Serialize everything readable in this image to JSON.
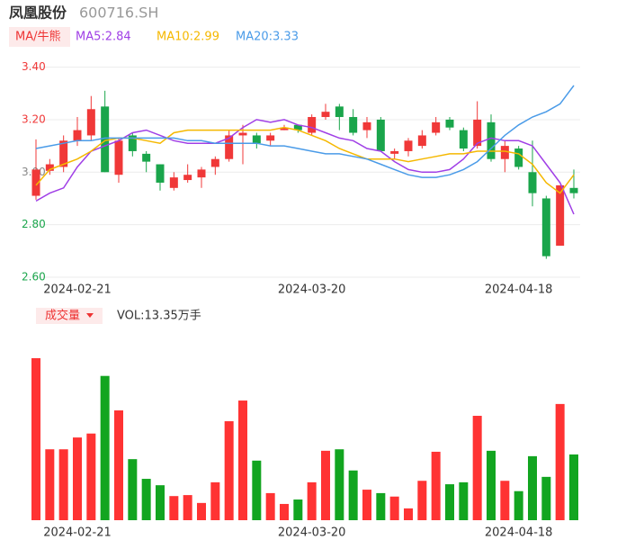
{
  "header": {
    "title": "凤凰股份",
    "code": "600716.SH",
    "ma_button": "MA/牛熊",
    "volume_button": "成交量",
    "volume_label": "VOL:13.35万手"
  },
  "chart_data": [
    {
      "type": "candlestick",
      "categories": [
        null,
        null,
        null,
        "2024-02-21",
        null,
        null,
        null,
        null,
        null,
        null,
        null,
        null,
        null,
        null,
        null,
        null,
        null,
        null,
        null,
        null,
        "2024-03-20",
        null,
        null,
        null,
        null,
        null,
        null,
        null,
        null,
        null,
        null,
        null,
        null,
        null,
        null,
        "2024-04-18",
        null,
        null,
        null,
        null
      ],
      "open": [
        2.91,
        3.005,
        3.02,
        3.12,
        3.14,
        3.25,
        2.99,
        3.14,
        3.07,
        3.03,
        2.94,
        2.97,
        2.98,
        3.02,
        3.05,
        3.14,
        3.14,
        3.12,
        3.16,
        3.18,
        3.15,
        3.21,
        3.25,
        3.21,
        3.16,
        3.2,
        3.07,
        3.08,
        3.1,
        3.15,
        3.2,
        3.16,
        3.1,
        3.19,
        3.05,
        3.09,
        3.0,
        2.9,
        2.72,
        2.94
      ],
      "close": [
        3.01,
        3.03,
        3.12,
        3.16,
        3.24,
        3.0,
        3.12,
        3.08,
        3.04,
        2.96,
        2.98,
        2.99,
        3.01,
        3.05,
        3.14,
        3.15,
        3.11,
        3.14,
        3.17,
        3.16,
        3.21,
        3.23,
        3.21,
        3.15,
        3.19,
        3.08,
        3.08,
        3.12,
        3.14,
        3.19,
        3.17,
        3.09,
        3.2,
        3.05,
        3.1,
        3.02,
        2.92,
        2.68,
        2.95,
        2.92
      ],
      "high": [
        3.125,
        3.05,
        3.14,
        3.21,
        3.29,
        3.31,
        3.13,
        3.15,
        3.08,
        3.03,
        3.0,
        3.03,
        3.02,
        3.06,
        3.16,
        3.18,
        3.15,
        3.15,
        3.18,
        3.18,
        3.22,
        3.26,
        3.26,
        3.24,
        3.21,
        3.21,
        3.09,
        3.13,
        3.16,
        3.21,
        3.21,
        3.17,
        3.27,
        3.22,
        3.12,
        3.1,
        3.12,
        2.91,
        2.95,
        3.01
      ],
      "low": [
        2.895,
        2.99,
        3.0,
        3.1,
        3.12,
        3.0,
        2.96,
        3.06,
        3.0,
        2.93,
        2.93,
        2.96,
        2.94,
        2.99,
        3.04,
        3.03,
        3.09,
        3.1,
        3.16,
        3.15,
        3.14,
        3.2,
        3.16,
        3.14,
        3.13,
        3.08,
        3.05,
        3.06,
        3.09,
        3.14,
        3.16,
        3.08,
        3.09,
        3.04,
        3.0,
        3.01,
        2.87,
        2.67,
        2.72,
        2.9
      ],
      "up_color": "#f03838",
      "down_color": "#1aa54b",
      "series": [
        {
          "name": "MA5:2.84",
          "color": "#a03fe6",
          "values": [
            2.89,
            2.92,
            2.94,
            3.02,
            3.08,
            3.1,
            3.12,
            3.15,
            3.16,
            3.14,
            3.12,
            3.11,
            3.11,
            3.11,
            3.13,
            3.17,
            3.2,
            3.19,
            3.2,
            3.18,
            3.17,
            3.15,
            3.13,
            3.12,
            3.09,
            3.08,
            3.04,
            3.01,
            3.0,
            3.0,
            3.01,
            3.05,
            3.11,
            3.13,
            3.12,
            3.12,
            3.1,
            3.03,
            2.96,
            2.84
          ]
        },
        {
          "name": "MA10:2.99",
          "color": "#f5b800",
          "values": [
            2.95,
            3.01,
            3.03,
            3.05,
            3.08,
            3.12,
            3.13,
            3.13,
            3.12,
            3.11,
            3.15,
            3.16,
            3.16,
            3.16,
            3.16,
            3.16,
            3.16,
            3.16,
            3.17,
            3.16,
            3.14,
            3.12,
            3.09,
            3.07,
            3.05,
            3.05,
            3.05,
            3.04,
            3.05,
            3.06,
            3.07,
            3.07,
            3.08,
            3.08,
            3.08,
            3.07,
            3.03,
            2.96,
            2.92,
            2.99
          ]
        },
        {
          "name": "MA20:3.33",
          "color": "#4a9be8",
          "values": [
            3.09,
            3.1,
            3.11,
            3.12,
            3.12,
            3.13,
            3.13,
            3.13,
            3.13,
            3.13,
            3.13,
            3.12,
            3.12,
            3.11,
            3.11,
            3.11,
            3.11,
            3.1,
            3.1,
            3.09,
            3.08,
            3.07,
            3.07,
            3.06,
            3.05,
            3.03,
            3.01,
            2.99,
            2.98,
            2.98,
            2.99,
            3.01,
            3.04,
            3.09,
            3.14,
            3.18,
            3.21,
            3.23,
            3.26,
            3.33
          ]
        }
      ],
      "ylim": [
        2.6,
        3.45
      ],
      "yticks": [
        {
          "value": 2.6,
          "label": "2.60"
        },
        {
          "value": 2.8,
          "label": "2.80"
        },
        {
          "value": 3.0,
          "label": "3.00"
        },
        {
          "value": 3.2,
          "label": "3.20"
        },
        {
          "value": 3.4,
          "label": "3.40"
        }
      ],
      "ytick_colors": [
        "#1aa54b",
        "#1aa54b",
        "#888888",
        "#f03838",
        "#f03838"
      ],
      "grid": true
    },
    {
      "type": "bar",
      "categories": [
        null,
        null,
        null,
        "2024-02-21",
        null,
        null,
        null,
        null,
        null,
        null,
        null,
        null,
        null,
        null,
        null,
        null,
        null,
        null,
        null,
        null,
        "2024-03-20",
        null,
        null,
        null,
        null,
        null,
        null,
        null,
        null,
        null,
        null,
        null,
        null,
        null,
        null,
        "2024-04-18",
        null,
        null,
        null,
        null
      ],
      "values": [
        32.9,
        14.4,
        14.4,
        16.8,
        17.6,
        29.3,
        22.3,
        12.4,
        8.4,
        7.1,
        4.9,
        5.1,
        3.5,
        7.7,
        20.1,
        24.3,
        12.1,
        5.5,
        3.3,
        4.2,
        7.7,
        14.1,
        14.4,
        10.1,
        6.2,
        5.5,
        4.8,
        2.4,
        8.0,
        13.9,
        7.3,
        7.7,
        21.2,
        14.1,
        8.0,
        5.9,
        13.0,
        8.8,
        23.6,
        13.35
      ],
      "ylim": [
        0,
        32.9
      ]
    }
  ]
}
